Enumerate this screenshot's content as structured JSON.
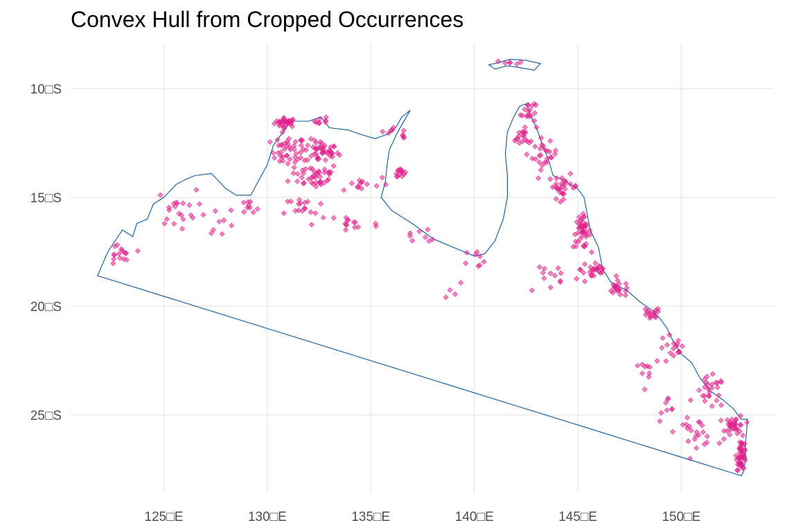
{
  "title": "Convex Hull from Cropped Occurrences",
  "colors": {
    "grid": "#ebebeb",
    "outline": "#08589e",
    "points": "#e0218a",
    "axis_text": "#4d4d4d",
    "background": "#ffffff"
  },
  "chart_data": {
    "type": "map",
    "title": "Convex Hull from Cropped Occurrences",
    "x_axis": {
      "ticks": [
        125,
        130,
        135,
        140,
        145,
        150
      ],
      "tick_labels": [
        "125□E",
        "130□E",
        "135□E",
        "140□E",
        "145□E",
        "150□E"
      ],
      "range": [
        120.5,
        154.5
      ]
    },
    "y_axis": {
      "ticks": [
        -10,
        -15,
        -20,
        -25
      ],
      "tick_labels": [
        "10□S",
        "15□S",
        "20□S",
        "25□S"
      ],
      "range": [
        -28.6,
        -7.9
      ]
    },
    "grid": true,
    "hull_polygon": [
      [
        121.8,
        -18.6
      ],
      [
        122.3,
        -17.5
      ],
      [
        123.0,
        -16.5
      ],
      [
        123.5,
        -16.8
      ],
      [
        123.7,
        -16.2
      ],
      [
        124.2,
        -16.0
      ],
      [
        124.5,
        -15.3
      ],
      [
        125.0,
        -15.0
      ],
      [
        125.6,
        -14.4
      ],
      [
        126.0,
        -14.2
      ],
      [
        126.5,
        -14.0
      ],
      [
        127.3,
        -13.9
      ],
      [
        128.0,
        -14.6
      ],
      [
        128.5,
        -14.9
      ],
      [
        129.2,
        -14.9
      ],
      [
        129.6,
        -14.2
      ],
      [
        130.0,
        -13.5
      ],
      [
        130.3,
        -12.6
      ],
      [
        130.6,
        -12.2
      ],
      [
        130.9,
        -11.8
      ],
      [
        131.2,
        -11.5
      ],
      [
        132.0,
        -11.5
      ],
      [
        132.6,
        -11.3
      ],
      [
        133.0,
        -11.8
      ],
      [
        133.9,
        -11.9
      ],
      [
        134.5,
        -12.1
      ],
      [
        135.2,
        -12.3
      ],
      [
        135.8,
        -12.1
      ],
      [
        136.2,
        -11.8
      ],
      [
        136.5,
        -11.3
      ],
      [
        136.9,
        -11.0
      ],
      [
        136.3,
        -12.0
      ],
      [
        135.9,
        -12.8
      ],
      [
        135.8,
        -13.4
      ],
      [
        135.7,
        -14.3
      ],
      [
        135.5,
        -15.0
      ],
      [
        136.0,
        -15.6
      ],
      [
        137.0,
        -16.2
      ],
      [
        138.0,
        -16.9
      ],
      [
        139.0,
        -17.3
      ],
      [
        139.5,
        -17.5
      ],
      [
        140.0,
        -17.7
      ],
      [
        140.5,
        -17.6
      ],
      [
        141.0,
        -17.0
      ],
      [
        141.4,
        -16.0
      ],
      [
        141.6,
        -15.0
      ],
      [
        141.6,
        -14.0
      ],
      [
        141.5,
        -13.0
      ],
      [
        141.6,
        -12.0
      ],
      [
        141.9,
        -11.3
      ],
      [
        142.2,
        -10.8
      ],
      [
        142.5,
        -10.7
      ],
      [
        142.7,
        -11.2
      ],
      [
        143.0,
        -11.8
      ],
      [
        143.3,
        -12.6
      ],
      [
        143.6,
        -13.3
      ],
      [
        143.8,
        -14.0
      ],
      [
        144.3,
        -14.2
      ],
      [
        144.6,
        -14.4
      ],
      [
        145.0,
        -14.6
      ],
      [
        145.3,
        -15.0
      ],
      [
        145.5,
        -16.0
      ],
      [
        145.6,
        -16.5
      ],
      [
        146.0,
        -17.3
      ],
      [
        146.2,
        -18.3
      ],
      [
        146.6,
        -18.9
      ],
      [
        147.4,
        -19.3
      ],
      [
        148.0,
        -19.8
      ],
      [
        148.6,
        -20.2
      ],
      [
        149.0,
        -20.6
      ],
      [
        149.3,
        -21.0
      ],
      [
        149.6,
        -21.6
      ],
      [
        150.0,
        -22.2
      ],
      [
        150.5,
        -22.6
      ],
      [
        150.9,
        -23.3
      ],
      [
        151.4,
        -23.9
      ],
      [
        152.0,
        -24.3
      ],
      [
        152.5,
        -24.7
      ],
      [
        152.9,
        -25.2
      ],
      [
        153.2,
        -25.2
      ],
      [
        153.1,
        -26.3
      ],
      [
        153.1,
        -27.1
      ],
      [
        153.0,
        -27.6
      ],
      [
        152.9,
        -27.8
      ],
      [
        121.8,
        -18.6
      ]
    ],
    "island_polygon": [
      [
        140.7,
        -8.9
      ],
      [
        141.2,
        -8.8
      ],
      [
        141.7,
        -8.65
      ],
      [
        142.5,
        -8.7
      ],
      [
        143.2,
        -8.85
      ],
      [
        142.9,
        -9.15
      ],
      [
        142.3,
        -9.05
      ],
      [
        141.6,
        -8.95
      ],
      [
        141.0,
        -9.1
      ],
      [
        140.7,
        -8.9
      ]
    ],
    "occurrence_clusters": [
      {
        "center": [
          130.9,
          -11.55
        ],
        "spread": [
          0.45,
          0.18
        ],
        "count": 30
      },
      {
        "center": [
          132.7,
          -11.5
        ],
        "spread": [
          0.35,
          0.2
        ],
        "count": 8
      },
      {
        "center": [
          131.0,
          -12.9
        ],
        "spread": [
          0.7,
          0.6
        ],
        "count": 40
      },
      {
        "center": [
          132.6,
          -12.9
        ],
        "spread": [
          0.7,
          0.45
        ],
        "count": 45
      },
      {
        "center": [
          132.3,
          -14.0
        ],
        "spread": [
          1.0,
          0.5
        ],
        "count": 40
      },
      {
        "center": [
          134.5,
          -14.4
        ],
        "spread": [
          1.2,
          0.35
        ],
        "count": 14
      },
      {
        "center": [
          136.4,
          -13.8
        ],
        "spread": [
          0.2,
          0.18
        ],
        "count": 14
      },
      {
        "center": [
          135.9,
          -12.0
        ],
        "spread": [
          0.4,
          0.15
        ],
        "count": 6
      },
      {
        "center": [
          136.6,
          -12.2
        ],
        "spread": [
          0.15,
          0.2
        ],
        "count": 4
      },
      {
        "center": [
          141.8,
          -8.8
        ],
        "spread": [
          0.6,
          0.08
        ],
        "count": 6
      },
      {
        "center": [
          142.6,
          -11.0
        ],
        "spread": [
          0.3,
          0.5
        ],
        "count": 16
      },
      {
        "center": [
          142.4,
          -12.2
        ],
        "spread": [
          0.5,
          0.4
        ],
        "count": 20
      },
      {
        "center": [
          143.4,
          -13.1
        ],
        "spread": [
          0.5,
          0.5
        ],
        "count": 24
      },
      {
        "center": [
          144.3,
          -14.5
        ],
        "spread": [
          0.6,
          0.45
        ],
        "count": 28
      },
      {
        "center": [
          145.2,
          -16.6
        ],
        "spread": [
          0.35,
          0.6
        ],
        "count": 42
      },
      {
        "center": [
          145.8,
          -18.3
        ],
        "spread": [
          0.55,
          0.45
        ],
        "count": 24
      },
      {
        "center": [
          147.0,
          -19.2
        ],
        "spread": [
          0.55,
          0.3
        ],
        "count": 20
      },
      {
        "center": [
          148.5,
          -20.4
        ],
        "spread": [
          0.4,
          0.3
        ],
        "count": 16
      },
      {
        "center": [
          149.6,
          -22.0
        ],
        "spread": [
          0.6,
          0.6
        ],
        "count": 16
      },
      {
        "center": [
          151.4,
          -24.0
        ],
        "spread": [
          0.6,
          0.6
        ],
        "count": 26
      },
      {
        "center": [
          152.6,
          -25.5
        ],
        "spread": [
          0.4,
          0.4
        ],
        "count": 32
      },
      {
        "center": [
          152.9,
          -26.8
        ],
        "spread": [
          0.2,
          0.6
        ],
        "count": 45
      },
      {
        "center": [
          150.7,
          -25.8
        ],
        "spread": [
          0.8,
          0.5
        ],
        "count": 22
      },
      {
        "center": [
          122.8,
          -17.7
        ],
        "spread": [
          0.5,
          0.5
        ],
        "count": 16
      },
      {
        "center": [
          125.6,
          -15.5
        ],
        "spread": [
          0.8,
          0.7
        ],
        "count": 20
      },
      {
        "center": [
          127.5,
          -16.2
        ],
        "spread": [
          1.0,
          0.7
        ],
        "count": 8
      },
      {
        "center": [
          129.0,
          -15.6
        ],
        "spread": [
          0.6,
          0.4
        ],
        "count": 10
      },
      {
        "center": [
          131.8,
          -15.6
        ],
        "spread": [
          0.8,
          0.6
        ],
        "count": 18
      },
      {
        "center": [
          134.0,
          -16.2
        ],
        "spread": [
          1.2,
          0.5
        ],
        "count": 14
      },
      {
        "center": [
          137.5,
          -16.8
        ],
        "spread": [
          1.0,
          0.4
        ],
        "count": 8
      },
      {
        "center": [
          140.3,
          -17.8
        ],
        "spread": [
          0.7,
          0.4
        ],
        "count": 8
      },
      {
        "center": [
          143.8,
          -18.6
        ],
        "spread": [
          1.2,
          0.7
        ],
        "count": 14
      },
      {
        "center": [
          139.0,
          -19.2
        ],
        "spread": [
          0.5,
          0.5
        ],
        "count": 4
      },
      {
        "center": [
          148.3,
          -22.8
        ],
        "spread": [
          0.6,
          0.6
        ],
        "count": 10
      },
      {
        "center": [
          149.4,
          -24.8
        ],
        "spread": [
          0.6,
          0.5
        ],
        "count": 8
      }
    ]
  }
}
